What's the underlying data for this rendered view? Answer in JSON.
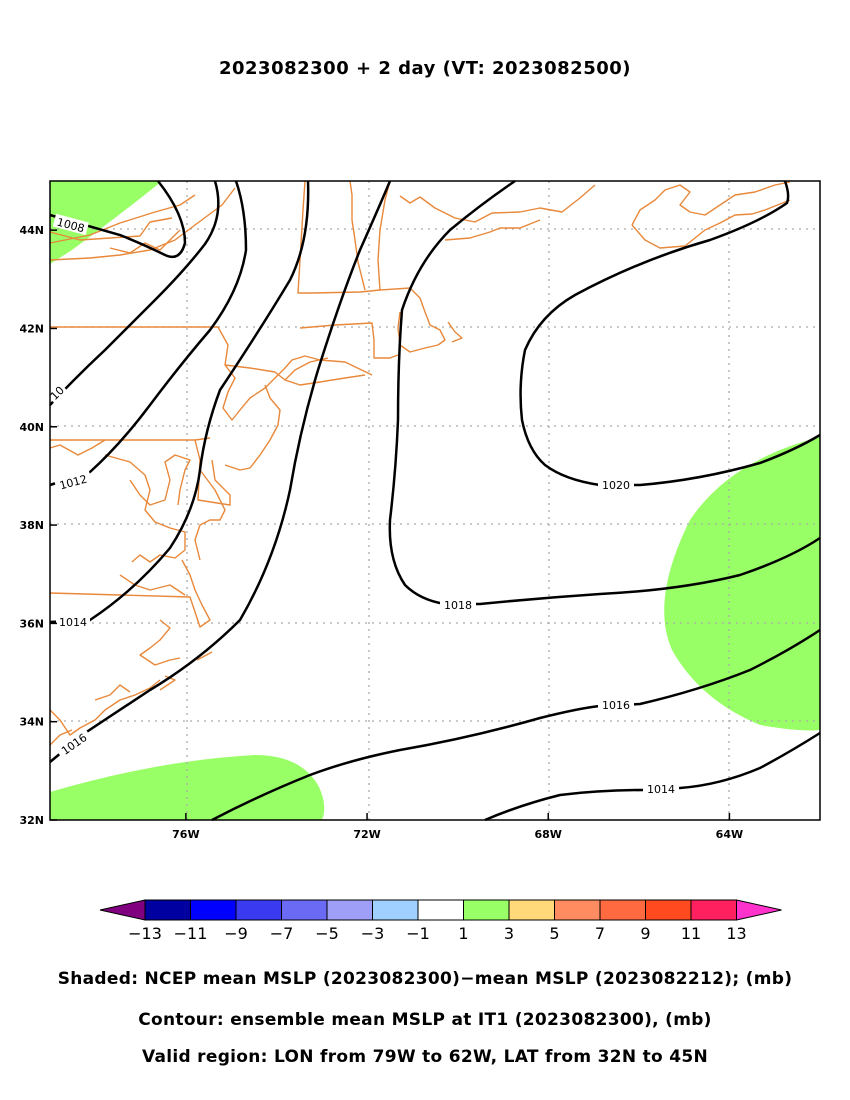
{
  "title": "2023082300 + 2 day (VT: 2023082500)",
  "map": {
    "lon_range": [
      -79,
      -62
    ],
    "lat_range": [
      32,
      45
    ],
    "x_ticks": [
      {
        "lon": -76,
        "label": "76W"
      },
      {
        "lon": -72,
        "label": "72W"
      },
      {
        "lon": -68,
        "label": "68W"
      },
      {
        "lon": -64,
        "label": "64W"
      }
    ],
    "y_ticks": [
      {
        "lat": 32,
        "label": "32N"
      },
      {
        "lat": 34,
        "label": "34N"
      },
      {
        "lat": 36,
        "label": "36N"
      },
      {
        "lat": 38,
        "label": "38N"
      },
      {
        "lat": 40,
        "label": "40N"
      },
      {
        "lat": 42,
        "label": "42N"
      },
      {
        "lat": 44,
        "label": "44N"
      }
    ],
    "contour_levels": [
      {
        "label": "1008"
      },
      {
        "label": "10"
      },
      {
        "label": "1012"
      },
      {
        "label": "1014"
      },
      {
        "label": "1016"
      },
      {
        "label": "1018"
      },
      {
        "label": "1020"
      },
      {
        "label": "1016"
      },
      {
        "label": "1014"
      }
    ],
    "shaded_fill_color": "#99ff66",
    "coastline_color": "#e8883a",
    "contour_color": "#000000",
    "grid": true
  },
  "colorbar": {
    "colors": [
      "#800080",
      "#0000a0",
      "#0000ff",
      "#3a3af0",
      "#6a6af5",
      "#9f9ff8",
      "#a0d0ff",
      "#ffffff",
      "#99ff66",
      "#ffd97a",
      "#ff8c60",
      "#ff6a40",
      "#ff4a20",
      "#ff2060",
      "#ff33cc"
    ],
    "labels": [
      "−13",
      "−11",
      "−9",
      "−7",
      "−5",
      "−3",
      "−1",
      "1",
      "3",
      "5",
      "7",
      "9",
      "11",
      "13"
    ]
  },
  "captions": {
    "shaded": "Shaded: NCEP mean MSLP (2023082300)−mean MSLP (2023082212); (mb)",
    "contour": "Contour: ensemble mean MSLP at IT1 (2023082300), (mb)",
    "region": "Valid region: LON from 79W to 62W, LAT from 32N to 45N"
  }
}
